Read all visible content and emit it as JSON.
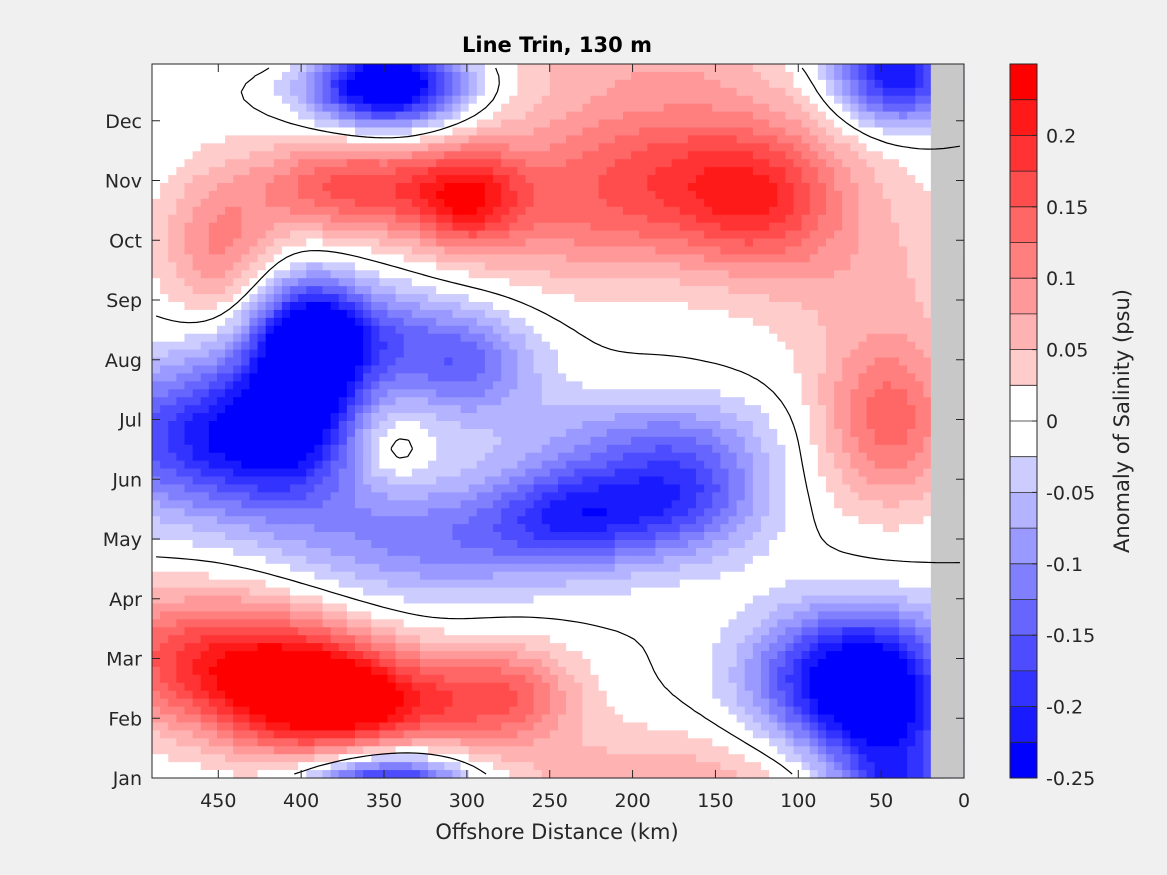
{
  "chart_data": {
    "type": "heatmap",
    "title": "Line Trin, 130 m",
    "xlabel": "Offshore Distance (km)",
    "ylabel": "",
    "xlim": [
      490,
      0
    ],
    "x_reversed": true,
    "xticks": [
      450,
      400,
      350,
      300,
      250,
      200,
      150,
      100,
      50,
      0
    ],
    "yticks": [
      "Jan",
      "Feb",
      "Mar",
      "Apr",
      "May",
      "Jun",
      "Jul",
      "Aug",
      "Sep",
      "Oct",
      "Nov",
      "Dec"
    ],
    "no_data_region_km": [
      0,
      20
    ],
    "no_data_color": "#c8c8c8",
    "zero_contour": true,
    "colorbar": {
      "label": "Anomaly of Salinity (psu)",
      "clim": [
        -0.25,
        0.25
      ],
      "level_step": 0.025,
      "ticks": [
        "0.2",
        "0.15",
        "0.1",
        "0.05",
        "0",
        "-0.05",
        "-0.1",
        "-0.15",
        "-0.2",
        "-0.25"
      ],
      "tick_values": [
        0.2,
        0.15,
        0.1,
        0.05,
        0,
        -0.05,
        -0.1,
        -0.15,
        -0.2,
        -0.25
      ],
      "colormap": "blue-white-red",
      "negative_color": "#0000ff",
      "positive_color": "#ff0000",
      "zero_color": "#ffffff"
    },
    "features": [
      {
        "x_km": 455,
        "month": 2.0,
        "value": 0.17,
        "sx_km": 55,
        "sy_months": 0.8
      },
      {
        "x_km": 395,
        "month": 1.4,
        "value": 0.19,
        "sx_km": 40,
        "sy_months": 0.7
      },
      {
        "x_km": 350,
        "month": 1.2,
        "value": 0.14,
        "sx_km": 45,
        "sy_months": 0.6
      },
      {
        "x_km": 275,
        "month": 1.4,
        "value": 0.12,
        "sx_km": 30,
        "sy_months": 0.6
      },
      {
        "x_km": 345,
        "month": -0.2,
        "value": -0.14,
        "sx_km": 35,
        "sy_months": 0.5
      },
      {
        "x_km": 180,
        "month": 0.1,
        "value": 0.05,
        "sx_km": 80,
        "sy_months": 0.6
      },
      {
        "x_km": 85,
        "month": 1.6,
        "value": -0.17,
        "sx_km": 35,
        "sy_months": 0.8
      },
      {
        "x_km": 45,
        "month": 1.0,
        "value": -0.2,
        "sx_km": 30,
        "sy_months": 0.8
      },
      {
        "x_km": 50,
        "month": 2.2,
        "value": -0.08,
        "sx_km": 35,
        "sy_months": 0.6
      },
      {
        "x_km": 460,
        "month": 5.7,
        "value": -0.19,
        "sx_km": 45,
        "sy_months": 0.9
      },
      {
        "x_km": 405,
        "month": 5.9,
        "value": -0.16,
        "sx_km": 30,
        "sy_months": 1.0
      },
      {
        "x_km": 395,
        "month": 7.2,
        "value": -0.22,
        "sx_km": 22,
        "sy_months": 0.8
      },
      {
        "x_km": 365,
        "month": 7.4,
        "value": -0.12,
        "sx_km": 40,
        "sy_months": 0.6
      },
      {
        "x_km": 300,
        "month": 6.9,
        "value": -0.12,
        "sx_km": 30,
        "sy_months": 0.6
      },
      {
        "x_km": 345,
        "month": 4.0,
        "value": -0.07,
        "sx_km": 50,
        "sy_months": 0.8
      },
      {
        "x_km": 275,
        "month": 4.0,
        "value": -0.07,
        "sx_km": 60,
        "sy_months": 0.6
      },
      {
        "x_km": 235,
        "month": 4.5,
        "value": -0.15,
        "sx_km": 35,
        "sy_months": 0.6
      },
      {
        "x_km": 170,
        "month": 4.8,
        "value": -0.16,
        "sx_km": 35,
        "sy_months": 0.7
      },
      {
        "x_km": 200,
        "month": 5.8,
        "value": -0.06,
        "sx_km": 60,
        "sy_months": 0.5
      },
      {
        "x_km": 345,
        "month": 5.5,
        "value": 0.05,
        "sx_km": 15,
        "sy_months": 0.4
      },
      {
        "x_km": 450,
        "month": 8.9,
        "value": 0.1,
        "sx_km": 25,
        "sy_months": 0.9
      },
      {
        "x_km": 370,
        "month": 9.9,
        "value": 0.16,
        "sx_km": 40,
        "sy_months": 0.6
      },
      {
        "x_km": 300,
        "month": 9.7,
        "value": 0.17,
        "sx_km": 25,
        "sy_months": 0.6
      },
      {
        "x_km": 180,
        "month": 10.3,
        "value": 0.13,
        "sx_km": 70,
        "sy_months": 0.9
      },
      {
        "x_km": 125,
        "month": 9.6,
        "value": 0.12,
        "sx_km": 35,
        "sy_months": 0.8
      },
      {
        "x_km": 225,
        "month": 9.2,
        "value": 0.07,
        "sx_km": 50,
        "sy_months": 0.8
      },
      {
        "x_km": 350,
        "month": 11.5,
        "value": -0.19,
        "sx_km": 30,
        "sy_months": 0.5
      },
      {
        "x_km": 65,
        "month": 8.5,
        "value": 0.05,
        "sx_km": 50,
        "sy_months": 1.0
      },
      {
        "x_km": 45,
        "month": 6.0,
        "value": 0.14,
        "sx_km": 30,
        "sy_months": 1.0
      },
      {
        "x_km": 40,
        "month": 11.6,
        "value": -0.18,
        "sx_km": 25,
        "sy_months": 0.5
      }
    ]
  }
}
